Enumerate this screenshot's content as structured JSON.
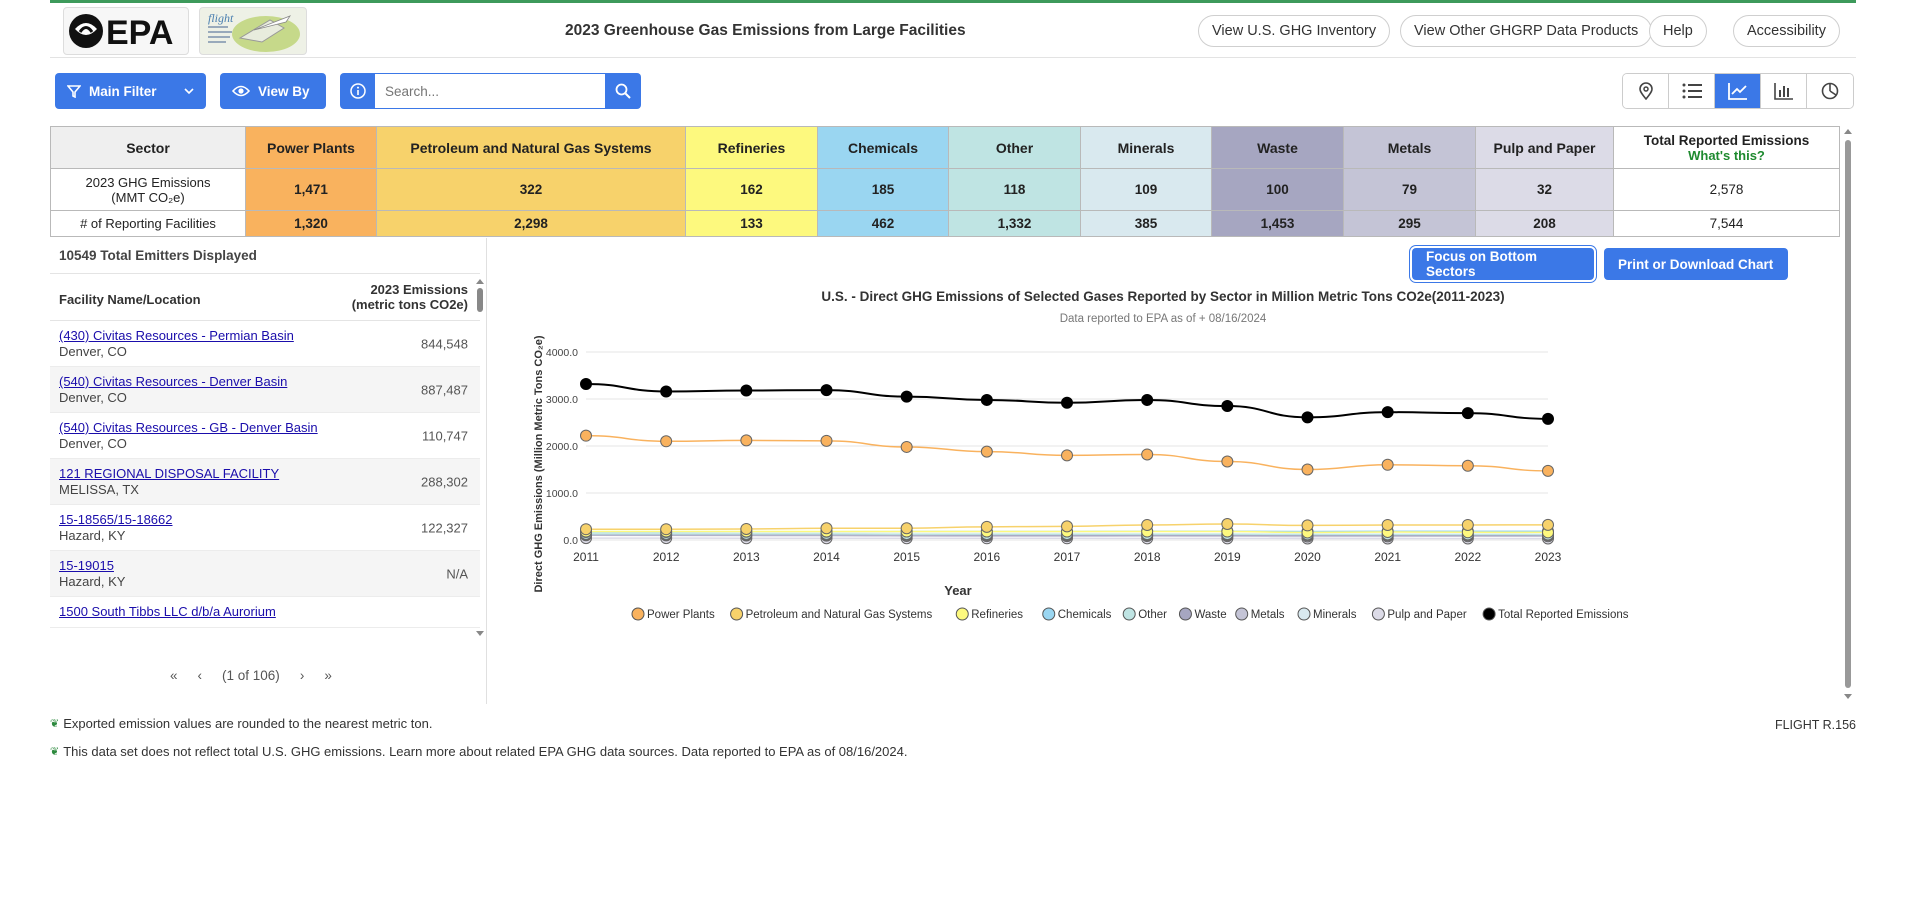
{
  "header": {
    "logo_text": "EPA",
    "flight_logo_text": "flight",
    "title": "2023 Greenhouse Gas Emissions from Large Facilities",
    "nav": [
      "View U.S. GHG Inventory",
      "View Other GHGRP Data Products",
      "Help",
      "Accessibility"
    ]
  },
  "toolbar": {
    "main_filter": "Main Filter",
    "view_by": "View By",
    "search_placeholder": "Search...",
    "views": [
      "map-pin-icon",
      "list-icon",
      "line-chart-icon",
      "bar-chart-icon",
      "pie-chart-icon"
    ],
    "active_view": "line-chart-icon"
  },
  "sectors": {
    "header_label": "Sector",
    "row1_label": "2023 GHG Emissions\n(MMT CO₂e)",
    "row2_label": "# of Reporting Facilities",
    "total_label": "Total Reported Emissions",
    "whats_this": "What's this?",
    "items": [
      {
        "name": "Power Plants",
        "emissions": "1,471",
        "facilities": "1,320",
        "color": "#f9b25e"
      },
      {
        "name": "Petroleum and Natural Gas Systems",
        "emissions": "322",
        "facilities": "2,298",
        "color": "#f7d26b"
      },
      {
        "name": "Refineries",
        "emissions": "162",
        "facilities": "133",
        "color": "#fdf97e"
      },
      {
        "name": "Chemicals",
        "emissions": "185",
        "facilities": "462",
        "color": "#9ad6f1"
      },
      {
        "name": "Other",
        "emissions": "118",
        "facilities": "1,332",
        "color": "#bfe4e3"
      },
      {
        "name": "Minerals",
        "emissions": "109",
        "facilities": "385",
        "color": "#d9e9ef"
      },
      {
        "name": "Waste",
        "emissions": "100",
        "facilities": "1,453",
        "color": "#a6a6c1"
      },
      {
        "name": "Metals",
        "emissions": "79",
        "facilities": "295",
        "color": "#c4c4d6"
      },
      {
        "name": "Pulp and Paper",
        "emissions": "32",
        "facilities": "208",
        "color": "#dcdbe7"
      }
    ],
    "total_emissions": "2,578",
    "total_facilities": "7,544"
  },
  "list": {
    "count_text": "10549 Total Emitters Displayed",
    "col_name": "Facility Name/Location",
    "col_em_1": "2023 Emissions",
    "col_em_2": "(metric tons CO2e)",
    "rows": [
      {
        "name": "(430) Civitas Resources - Permian Basin",
        "loc": "Denver, CO",
        "em": "844,548"
      },
      {
        "name": "(540) Civitas Resources - Denver Basin",
        "loc": "Denver, CO",
        "em": "887,487"
      },
      {
        "name": "(540) Civitas Resources - GB - Denver Basin",
        "loc": "Denver, CO",
        "em": "110,747"
      },
      {
        "name": "121 REGIONAL DISPOSAL FACILITY",
        "loc": "MELISSA, TX",
        "em": "288,302"
      },
      {
        "name": "15-18565/15-18662",
        "loc": "Hazard, KY",
        "em": "122,327"
      },
      {
        "name": "15-19015",
        "loc": "Hazard, KY",
        "em": "N/A"
      },
      {
        "name": "1500 South Tibbs LLC d/b/a Aurorium",
        "loc": "",
        "em": ""
      }
    ],
    "page_text": "(1 of 106)"
  },
  "chart_buttons": {
    "focus": "Focus on Bottom Sectors",
    "print": "Print or Download Chart"
  },
  "chart_data": {
    "type": "line",
    "title": "U.S. - Direct GHG Emissions of Selected Gases Reported by Sector in Million Metric Tons CO2e(2011-2023)",
    "subtitle": "Data reported to EPA as of + 08/16/2024",
    "xlabel": "Year",
    "ylabel": "Direct GHG Emissions (Million Metric Tons CO₂e)",
    "ylim": [
      0,
      4000
    ],
    "yticks": [
      "4000.0",
      "3000.0",
      "2000.0",
      "1000.0",
      "0.0"
    ],
    "x": [
      "2011",
      "2012",
      "2013",
      "2014",
      "2015",
      "2016",
      "2017",
      "2018",
      "2019",
      "2020",
      "2021",
      "2022",
      "2023"
    ],
    "legend_position": "bottom",
    "series": [
      {
        "name": "Power Plants",
        "color": "#f9b25e",
        "values": [
          2220,
          2100,
          2120,
          2110,
          1980,
          1880,
          1800,
          1820,
          1670,
          1500,
          1600,
          1580,
          1471
        ]
      },
      {
        "name": "Petroleum and Natural Gas Systems",
        "color": "#f7d26b",
        "values": [
          230,
          230,
          235,
          250,
          250,
          280,
          290,
          320,
          340,
          310,
          320,
          320,
          322
        ]
      },
      {
        "name": "Refineries",
        "color": "#fdf97e",
        "values": [
          180,
          180,
          180,
          180,
          180,
          180,
          180,
          180,
          180,
          160,
          170,
          165,
          162
        ]
      },
      {
        "name": "Chemicals",
        "color": "#9ad6f1",
        "values": [
          170,
          170,
          175,
          175,
          180,
          180,
          180,
          185,
          185,
          180,
          185,
          185,
          185
        ]
      },
      {
        "name": "Other",
        "color": "#bfe4e3",
        "values": [
          130,
          130,
          130,
          130,
          125,
          125,
          125,
          125,
          125,
          120,
          120,
          120,
          118
        ]
      },
      {
        "name": "Waste",
        "color": "#a6a6c1",
        "values": [
          115,
          110,
          110,
          110,
          108,
          105,
          105,
          104,
          104,
          102,
          101,
          101,
          100
        ]
      },
      {
        "name": "Metals",
        "color": "#c4c4d6",
        "values": [
          100,
          98,
          95,
          92,
          85,
          82,
          82,
          85,
          82,
          75,
          78,
          80,
          79
        ]
      },
      {
        "name": "Minerals",
        "color": "#d9e9ef",
        "values": [
          110,
          110,
          110,
          112,
          112,
          112,
          112,
          112,
          112,
          108,
          110,
          110,
          109
        ]
      },
      {
        "name": "Pulp and Paper",
        "color": "#dcdbe7",
        "values": [
          40,
          40,
          38,
          38,
          37,
          36,
          36,
          35,
          35,
          33,
          33,
          33,
          32
        ]
      },
      {
        "name": "Total Reported Emissions",
        "color": "#000000",
        "values": [
          3320,
          3160,
          3180,
          3190,
          3050,
          2980,
          2920,
          2980,
          2850,
          2610,
          2720,
          2700,
          2578
        ]
      }
    ]
  },
  "footnotes": [
    "Exported emission values are rounded to the nearest metric ton.",
    "This data set does not reflect total U.S. GHG emissions. Learn more about related EPA GHG data sources. Data reported to EPA as of 08/16/2024."
  ],
  "version": "FLIGHT R.156"
}
